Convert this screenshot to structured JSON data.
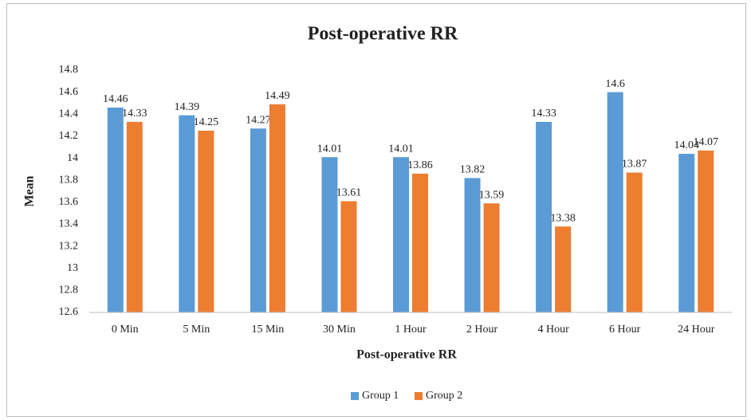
{
  "chart_data": {
    "type": "bar",
    "title": "Post-operative RR",
    "x_label": "Post-operative RR",
    "y_label": "Mean",
    "categories": [
      "0 Min",
      "5 Min",
      "15 Min",
      "30 Min",
      "1 Hour",
      "2 Hour",
      "4 Hour",
      "6 Hour",
      "24 Hour"
    ],
    "series": [
      {
        "name": "Group 1",
        "color": "#5b9bd5",
        "values": [
          14.46,
          14.39,
          14.27,
          14.01,
          14.01,
          13.82,
          14.33,
          14.6,
          14.04
        ]
      },
      {
        "name": "Group 2",
        "color": "#ed7d31",
        "values": [
          14.33,
          14.25,
          14.49,
          13.61,
          13.86,
          13.59,
          13.38,
          13.87,
          14.07
        ]
      }
    ],
    "ylim": [
      12.6,
      14.8
    ],
    "yticks": [
      12.6,
      12.8,
      13,
      13.2,
      13.4,
      13.6,
      13.8,
      14,
      14.2,
      14.4,
      14.6,
      14.8
    ],
    "grid": false,
    "legend": "bottom"
  }
}
